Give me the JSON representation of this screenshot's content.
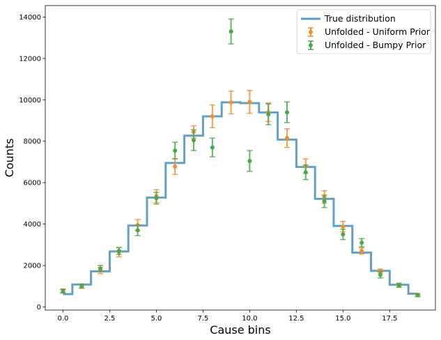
{
  "chart_data": {
    "type": "line",
    "xlabel": "Cause bins",
    "ylabel": "Counts",
    "xlim": [
      -0.95,
      19.95
    ],
    "ylim": [
      -150,
      14550
    ],
    "xticks": [
      0.0,
      2.5,
      5.0,
      7.5,
      10.0,
      12.5,
      15.0,
      17.5
    ],
    "xtick_labels": [
      "0.0",
      "2.5",
      "5.0",
      "7.5",
      "10.0",
      "12.5",
      "15.0",
      "17.5"
    ],
    "yticks": [
      0,
      2000,
      4000,
      6000,
      8000,
      10000,
      12000,
      14000
    ],
    "ytick_labels": [
      "0",
      "2000",
      "4000",
      "6000",
      "8000",
      "10000",
      "12000",
      "14000"
    ],
    "grid": false,
    "legend_position": "top-right",
    "x": [
      0,
      1,
      2,
      3,
      4,
      5,
      6,
      7,
      8,
      9,
      10,
      11,
      12,
      13,
      14,
      15,
      16,
      17,
      18,
      19
    ],
    "series": [
      {
        "name": "True distribution",
        "style": "steps-mid",
        "color": "#5a9bc5",
        "values": [
          620,
          1080,
          1720,
          2680,
          3930,
          5280,
          6950,
          8270,
          9200,
          9880,
          9840,
          9390,
          8080,
          6760,
          5220,
          3910,
          2620,
          1740,
          1070,
          640
        ]
      },
      {
        "name": "Unfolded - Uniform Prior",
        "style": "errorbar",
        "color": "#f28e2b",
        "values": [
          780,
          1000,
          1760,
          2640,
          3950,
          5350,
          6780,
          8450,
          9200,
          9870,
          9900,
          9400,
          8150,
          6800,
          5310,
          3880,
          2700,
          1730,
          1030,
          590
        ],
        "errors": [
          90,
          100,
          150,
          220,
          270,
          310,
          380,
          300,
          550,
          550,
          550,
          450,
          450,
          350,
          300,
          250,
          150,
          100,
          80,
          60
        ]
      },
      {
        "name": "Unfolded - Bumpy Prior",
        "style": "errorbar",
        "color": "#4aa84a",
        "values": [
          760,
          1010,
          1850,
          2700,
          3700,
          5250,
          7550,
          8050,
          7700,
          13300,
          7050,
          9300,
          9400,
          6500,
          5100,
          3500,
          3100,
          1550,
          1050,
          560
        ],
        "errors": [
          90,
          100,
          150,
          170,
          260,
          280,
          400,
          500,
          450,
          600,
          500,
          500,
          500,
          350,
          300,
          250,
          200,
          150,
          100,
          60
        ]
      }
    ]
  }
}
